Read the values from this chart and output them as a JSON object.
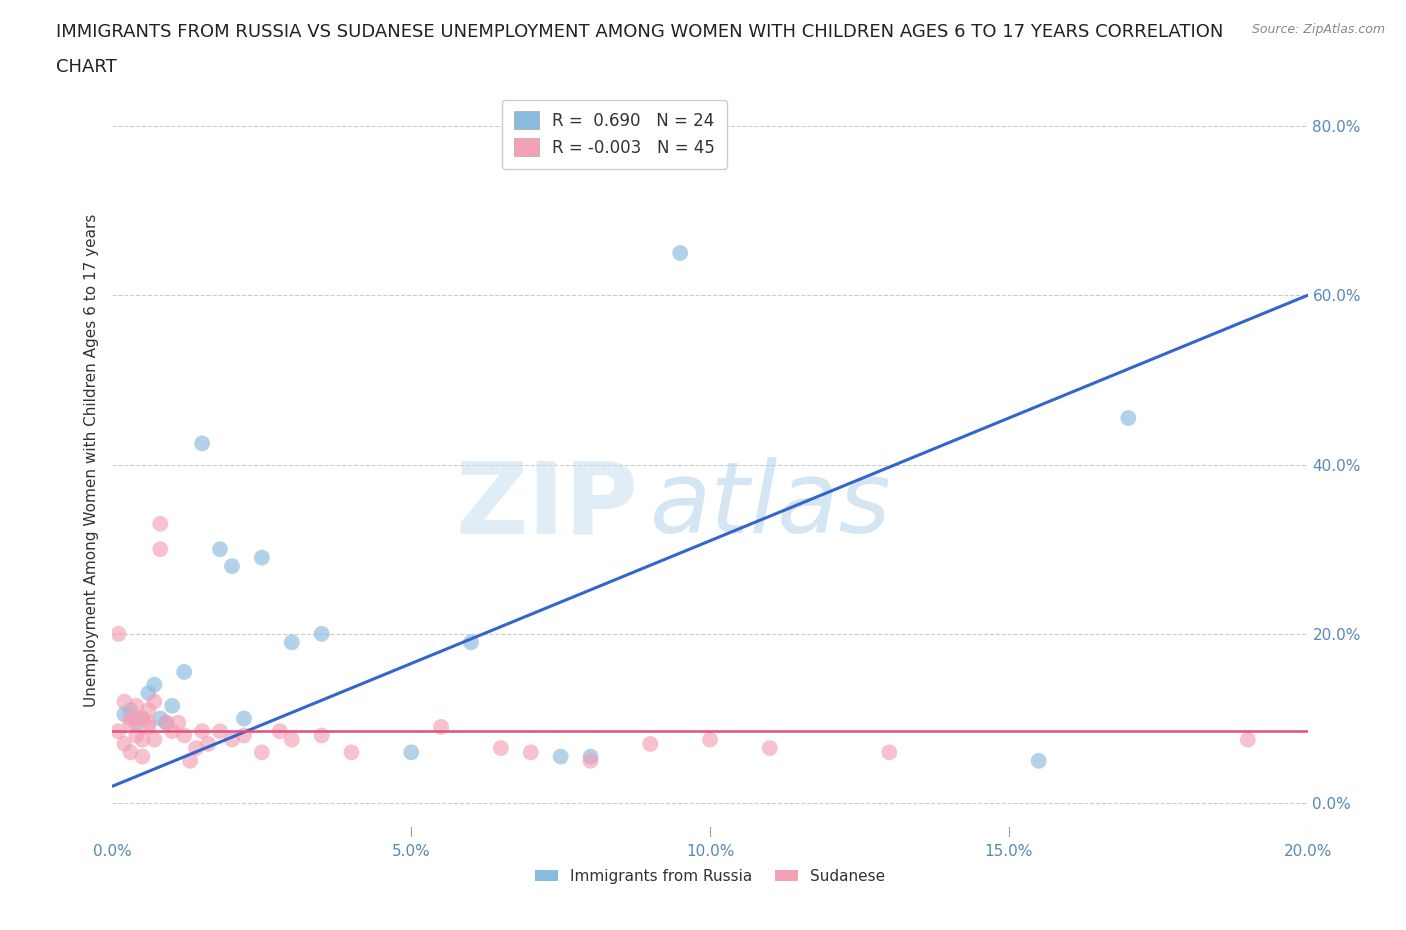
{
  "title_line1": "IMMIGRANTS FROM RUSSIA VS SUDANESE UNEMPLOYMENT AMONG WOMEN WITH CHILDREN AGES 6 TO 17 YEARS CORRELATION",
  "title_line2": "CHART",
  "source": "Source: ZipAtlas.com",
  "ylabel": "Unemployment Among Women with Children Ages 6 to 17 years",
  "legend_russia": "Immigrants from Russia",
  "legend_sudanese": "Sudanese",
  "R_russia": 0.69,
  "N_russia": 24,
  "R_sudanese": -0.003,
  "N_sudanese": 45,
  "xlim": [
    0.0,
    0.2
  ],
  "ylim": [
    -0.04,
    0.85
  ],
  "yticks": [
    0.0,
    0.2,
    0.4,
    0.6,
    0.8
  ],
  "xticks": [
    0.0,
    0.05,
    0.1,
    0.15,
    0.2
  ],
  "blue_color": "#88bbdd",
  "pink_color": "#f4a0b5",
  "blue_line_color": "#3366cc",
  "pink_line_color": "#e05080",
  "russia_x": [
    0.002,
    0.003,
    0.004,
    0.005,
    0.006,
    0.007,
    0.008,
    0.009,
    0.01,
    0.012,
    0.015,
    0.018,
    0.02,
    0.022,
    0.025,
    0.03,
    0.035,
    0.05,
    0.06,
    0.075,
    0.08,
    0.095,
    0.155,
    0.17
  ],
  "russia_y": [
    0.105,
    0.11,
    0.095,
    0.1,
    0.13,
    0.14,
    0.1,
    0.095,
    0.115,
    0.155,
    0.425,
    0.3,
    0.28,
    0.1,
    0.29,
    0.19,
    0.2,
    0.06,
    0.19,
    0.055,
    0.055,
    0.65,
    0.05,
    0.455
  ],
  "sudanese_x": [
    0.001,
    0.001,
    0.002,
    0.002,
    0.003,
    0.003,
    0.003,
    0.004,
    0.004,
    0.004,
    0.005,
    0.005,
    0.005,
    0.006,
    0.006,
    0.006,
    0.007,
    0.007,
    0.008,
    0.008,
    0.009,
    0.01,
    0.011,
    0.012,
    0.013,
    0.014,
    0.015,
    0.016,
    0.018,
    0.02,
    0.022,
    0.025,
    0.028,
    0.03,
    0.035,
    0.04,
    0.055,
    0.065,
    0.07,
    0.08,
    0.09,
    0.1,
    0.11,
    0.13,
    0.19
  ],
  "sudanese_y": [
    0.2,
    0.085,
    0.12,
    0.07,
    0.095,
    0.1,
    0.06,
    0.1,
    0.08,
    0.115,
    0.1,
    0.075,
    0.055,
    0.095,
    0.11,
    0.09,
    0.12,
    0.075,
    0.33,
    0.3,
    0.095,
    0.085,
    0.095,
    0.08,
    0.05,
    0.065,
    0.085,
    0.07,
    0.085,
    0.075,
    0.08,
    0.06,
    0.085,
    0.075,
    0.08,
    0.06,
    0.09,
    0.065,
    0.06,
    0.05,
    0.07,
    0.075,
    0.065,
    0.06,
    0.075
  ],
  "blue_trendline_x": [
    0.0,
    0.2
  ],
  "blue_trendline_y": [
    0.02,
    0.6
  ],
  "pink_trendline_x": [
    0.0,
    0.2
  ],
  "pink_trendline_y": [
    0.085,
    0.085
  ],
  "watermark_zip": "ZIP",
  "watermark_atlas": "atlas",
  "background_color": "#ffffff",
  "grid_color": "#cccccc"
}
